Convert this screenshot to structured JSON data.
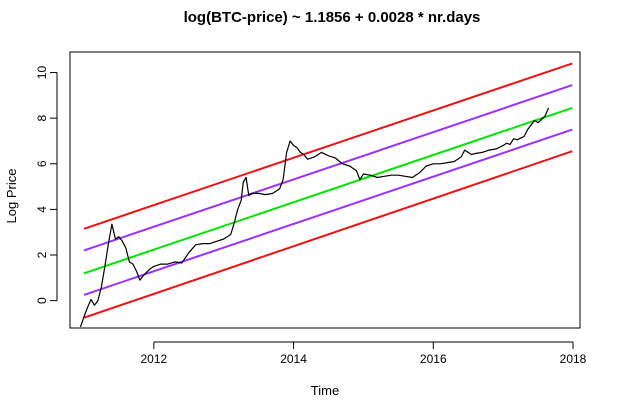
{
  "chart_data": {
    "type": "line",
    "title": "log(BTC-price) ~ 1.1856 + 0.0028 * nr.days",
    "xlabel": "Time",
    "ylabel": "Log Price",
    "xlim": [
      2010.8,
      2018.1
    ],
    "ylim": [
      -1.2,
      10.9
    ],
    "x_ticks": [
      2012,
      2014,
      2016,
      2018
    ],
    "x_tick_labels": [
      "2012",
      "2014",
      "2016",
      "2018"
    ],
    "y_ticks": [
      0,
      2,
      4,
      6,
      8,
      10
    ],
    "y_tick_labels": [
      "0",
      "2",
      "4",
      "6",
      "8",
      "10"
    ],
    "grid": false,
    "legend": "none",
    "series": [
      {
        "role": "price",
        "color": "#000000",
        "x": [
          2010.95,
          2011.0,
          2011.05,
          2011.1,
          2011.15,
          2011.2,
          2011.25,
          2011.3,
          2011.35,
          2011.4,
          2011.45,
          2011.5,
          2011.55,
          2011.6,
          2011.65,
          2011.7,
          2011.75,
          2011.8,
          2011.85,
          2011.9,
          2011.95,
          2012.0,
          2012.1,
          2012.2,
          2012.3,
          2012.4,
          2012.5,
          2012.6,
          2012.7,
          2012.8,
          2012.9,
          2013.0,
          2013.1,
          2013.15,
          2013.2,
          2013.25,
          2013.28,
          2013.32,
          2013.36,
          2013.4,
          2013.5,
          2013.6,
          2013.7,
          2013.8,
          2013.85,
          2013.9,
          2013.95,
          2014.0,
          2014.05,
          2014.1,
          2014.15,
          2014.2,
          2014.3,
          2014.4,
          2014.5,
          2014.6,
          2014.7,
          2014.8,
          2014.85,
          2014.9,
          2014.95,
          2015.0,
          2015.1,
          2015.2,
          2015.3,
          2015.4,
          2015.5,
          2015.6,
          2015.7,
          2015.8,
          2015.9,
          2016.0,
          2016.1,
          2016.2,
          2016.3,
          2016.4,
          2016.45,
          2016.5,
          2016.55,
          2016.6,
          2016.7,
          2016.8,
          2016.9,
          2017.0,
          2017.05,
          2017.1,
          2017.15,
          2017.2,
          2017.3,
          2017.35,
          2017.4,
          2017.45,
          2017.5,
          2017.55,
          2017.6,
          2017.65
        ],
        "y": [
          -1.15,
          -0.7,
          -0.3,
          0.05,
          -0.2,
          0.0,
          0.6,
          1.5,
          2.5,
          3.35,
          2.7,
          2.8,
          2.6,
          2.3,
          1.7,
          1.6,
          1.3,
          0.9,
          1.1,
          1.25,
          1.4,
          1.5,
          1.6,
          1.6,
          1.7,
          1.65,
          2.1,
          2.45,
          2.5,
          2.5,
          2.6,
          2.7,
          2.9,
          3.4,
          4.0,
          4.4,
          5.2,
          5.4,
          4.6,
          4.7,
          4.7,
          4.65,
          4.7,
          4.9,
          5.3,
          6.5,
          7.0,
          6.8,
          6.7,
          6.5,
          6.4,
          6.2,
          6.3,
          6.5,
          6.35,
          6.25,
          6.0,
          5.9,
          5.8,
          5.7,
          5.3,
          5.55,
          5.5,
          5.4,
          5.45,
          5.5,
          5.5,
          5.45,
          5.4,
          5.6,
          5.9,
          6.0,
          6.0,
          6.05,
          6.1,
          6.3,
          6.6,
          6.5,
          6.4,
          6.45,
          6.5,
          6.6,
          6.65,
          6.8,
          6.9,
          6.85,
          7.1,
          7.05,
          7.2,
          7.5,
          7.7,
          7.9,
          7.8,
          7.95,
          8.1,
          8.45
        ]
      },
      {
        "role": "upper-2-band",
        "color": "#ee1111",
        "x": [
          2011.0,
          2017.99
        ],
        "y": [
          3.15,
          10.4
        ]
      },
      {
        "role": "upper-1-band",
        "color": "#9b30ff",
        "x": [
          2011.0,
          2017.99
        ],
        "y": [
          2.2,
          9.45
        ]
      },
      {
        "role": "regression",
        "color": "#00e600",
        "x": [
          2011.0,
          2017.99
        ],
        "y": [
          1.2,
          8.45
        ]
      },
      {
        "role": "lower-1-band",
        "color": "#9b30ff",
        "x": [
          2011.0,
          2017.99
        ],
        "y": [
          0.25,
          7.5
        ]
      },
      {
        "role": "lower-2-band",
        "color": "#ee1111",
        "x": [
          2011.0,
          2017.99
        ],
        "y": [
          -0.75,
          6.55
        ]
      }
    ]
  }
}
